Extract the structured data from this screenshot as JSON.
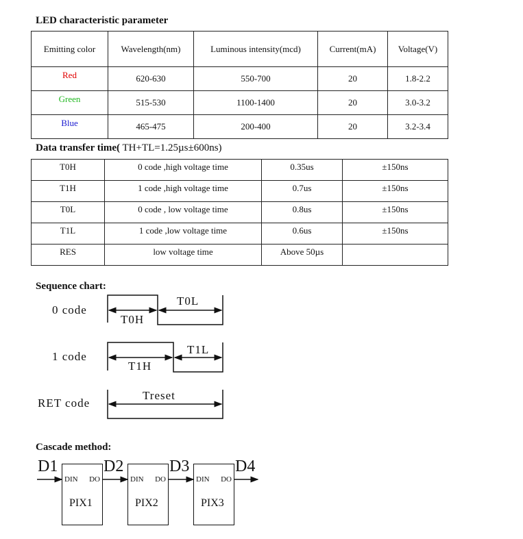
{
  "led_section": {
    "title": "LED characteristic parameter",
    "headers": [
      "Emitting color",
      "Wavelength(nm)",
      "Luminous intensity(mcd)",
      "Current(mA)",
      "Voltage(V)"
    ],
    "rows": [
      {
        "color": "Red",
        "wavelength": "620-630",
        "intensity": "550-700",
        "current": "20",
        "voltage": "1.8-2.2"
      },
      {
        "color": "Green",
        "wavelength": "515-530",
        "intensity": "1100-1400",
        "current": "20",
        "voltage": "3.0-3.2"
      },
      {
        "color": "Blue",
        "wavelength": "465-475",
        "intensity": "200-400",
        "current": "20",
        "voltage": "3.2-3.4"
      }
    ],
    "colors": {
      "Red": "#e00000",
      "Green": "#22b822",
      "Blue": "#1a1ad0"
    }
  },
  "transfer_section": {
    "title_bold": "Data transfer time(",
    "title_rest": " TH+TL=1.25µs±600ns)",
    "rows": [
      [
        "T0H",
        "0 code ,high voltage time",
        "0.35us",
        "±150ns"
      ],
      [
        "T1H",
        "1 code ,high voltage time",
        "0.7us",
        "±150ns"
      ],
      [
        "T0L",
        "0 code , low voltage time",
        "0.8us",
        "±150ns"
      ],
      [
        "T1L",
        "1 code ,low voltage time",
        "0.6us",
        "±150ns"
      ],
      [
        "RES",
        "low voltage time",
        "Above 50µs",
        ""
      ]
    ]
  },
  "sequence": {
    "title": "Sequence chart:",
    "code0": "0 code",
    "code1": "1 code",
    "ret": "RET code",
    "t0h": "T0H",
    "t0l": "T0L",
    "t1h": "T1H",
    "t1l": "T1L",
    "treset": "Treset"
  },
  "cascade": {
    "title": "Cascade method:",
    "signals": [
      "D1",
      "D2",
      "D3",
      "D4"
    ],
    "din": "DIN",
    "do": "DO",
    "pixels": [
      "PIX1",
      "PIX2",
      "PIX3"
    ]
  }
}
